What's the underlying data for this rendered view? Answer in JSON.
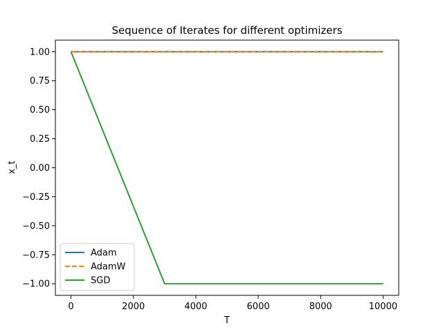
{
  "chart_data": {
    "type": "line",
    "title": "Sequence of Iterates for different optimizers",
    "xlabel": "T",
    "ylabel": "x_t",
    "xlim": [
      -500,
      10500
    ],
    "ylim": [
      -1.1,
      1.1
    ],
    "xticks": [
      0,
      2000,
      4000,
      6000,
      8000,
      10000
    ],
    "yticks": [
      -1.0,
      -0.75,
      -0.5,
      -0.25,
      0.0,
      0.25,
      0.5,
      0.75,
      1.0
    ],
    "xtick_labels": [
      "0",
      "2000",
      "4000",
      "6000",
      "8000",
      "10000"
    ],
    "ytick_labels": [
      "−1.00",
      "−0.75",
      "−0.50",
      "−0.25",
      "0.00",
      "0.25",
      "0.50",
      "0.75",
      "1.00"
    ],
    "grid": false,
    "legend": "lower-left",
    "series": [
      {
        "name": "Adam",
        "color": "#1f77b4",
        "style": "solid",
        "x": [
          0,
          10000
        ],
        "y": [
          1.0,
          1.0
        ]
      },
      {
        "name": "AdamW",
        "color": "#ff7f0e",
        "style": "dashed",
        "x": [
          0,
          10000
        ],
        "y": [
          1.0,
          1.0
        ]
      },
      {
        "name": "SGD",
        "color": "#2ca02c",
        "style": "solid",
        "x": [
          0,
          3000,
          10000
        ],
        "y": [
          1.0,
          -1.0,
          -1.0
        ]
      }
    ]
  }
}
